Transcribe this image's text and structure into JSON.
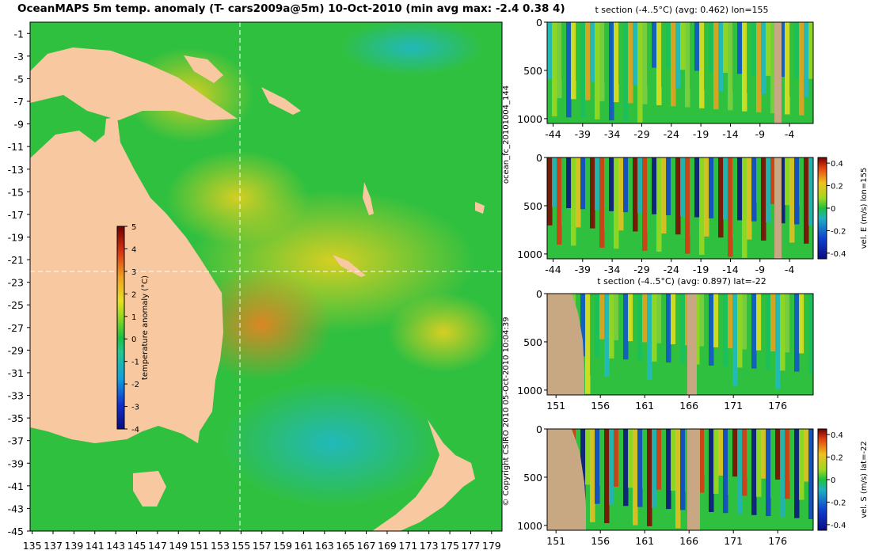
{
  "title": "OceanMAPS 5m temp. anomaly (T- cars2009a@5m) 10-Oct-2010 (min avg max: -2.4 0.38 4)",
  "side_labels": {
    "forecast_id": "ocean_fc_20101004_144",
    "copyright": "© Copyright CSIRO 2010   05-Oct-2010 10:04:39"
  },
  "colors": {
    "land": "#f8c9a0",
    "section_land": "#c8a883",
    "crosshair": "#ffffff"
  },
  "chart_data": [
    {
      "type": "heatmap",
      "name": "map",
      "title": "OceanMAPS 5m temp. anomaly (T- cars2009a@5m) 10-Oct-2010 (min avg max: -2.4 0.38 4)",
      "x_ticks": [
        "135",
        "137",
        "139",
        "141",
        "143",
        "145",
        "147",
        "149",
        "151",
        "153",
        "155",
        "157",
        "159",
        "161",
        "163",
        "165",
        "167",
        "169",
        "171",
        "173",
        "175",
        "177",
        "179"
      ],
      "y_ticks": [
        "-1",
        "-3",
        "-5",
        "-7",
        "-9",
        "-11",
        "-13",
        "-15",
        "-17",
        "-19",
        "-21",
        "-23",
        "-25",
        "-27",
        "-29",
        "-31",
        "-33",
        "-35",
        "-37",
        "-39",
        "-41",
        "-43",
        "-45"
      ],
      "xlim": [
        134.8,
        180
      ],
      "ylim": [
        -45,
        0
      ],
      "crosshair": {
        "lon": 155,
        "lat": -22
      },
      "stats": {
        "min": -2.4,
        "avg": 0.38,
        "max": 4
      },
      "colorbar": {
        "label": "temperature anomaly (°C)",
        "ticks": [
          "5",
          "4",
          "3",
          "2",
          "1",
          "0",
          "-1",
          "-2",
          "-3",
          "-4"
        ],
        "range": [
          -4,
          5
        ]
      }
    },
    {
      "type": "heatmap",
      "name": "t-section-lon155",
      "title": "t section (-4..5°C) (avg: 0.462) lon=155",
      "x_ticks": [
        "-44",
        "-39",
        "-34",
        "-29",
        "-24",
        "-19",
        "-14",
        "-9",
        "-4"
      ],
      "y_ticks": [
        "0",
        "500",
        "1000"
      ],
      "xlim": [
        -45,
        0
      ],
      "ylim": [
        1050,
        0
      ]
    },
    {
      "type": "heatmap",
      "name": "velE-section-lon155",
      "title": "",
      "x_ticks": [
        "-44",
        "-39",
        "-34",
        "-29",
        "-24",
        "-19",
        "-14",
        "-9",
        "-4"
      ],
      "y_ticks": [
        "0",
        "500",
        "1000"
      ],
      "colorbar": {
        "label": "vel. E (m/s) lon=155",
        "ticks": [
          "0.4",
          "0.2",
          "0",
          "-0.2",
          "-0.4"
        ],
        "range": [
          -0.45,
          0.45
        ]
      }
    },
    {
      "type": "heatmap",
      "name": "t-section-lat-22",
      "title": "t section (-4..5°C) (avg: 0.897) lat=-22",
      "x_ticks": [
        "151",
        "156",
        "161",
        "166",
        "171",
        "176"
      ],
      "y_ticks": [
        "0",
        "500",
        "1000"
      ],
      "xlim": [
        150,
        180
      ],
      "ylim": [
        1050,
        0
      ]
    },
    {
      "type": "heatmap",
      "name": "velS-section-lat-22",
      "title": "",
      "x_ticks": [
        "151",
        "156",
        "161",
        "166",
        "171",
        "176"
      ],
      "y_ticks": [
        "0",
        "500",
        "1000"
      ],
      "colorbar": {
        "label": "vel. S (m/s) lat=-22",
        "ticks": [
          "0.4",
          "0.2",
          "0",
          "-0.2",
          "-0.4"
        ],
        "range": [
          -0.45,
          0.45
        ]
      }
    }
  ]
}
